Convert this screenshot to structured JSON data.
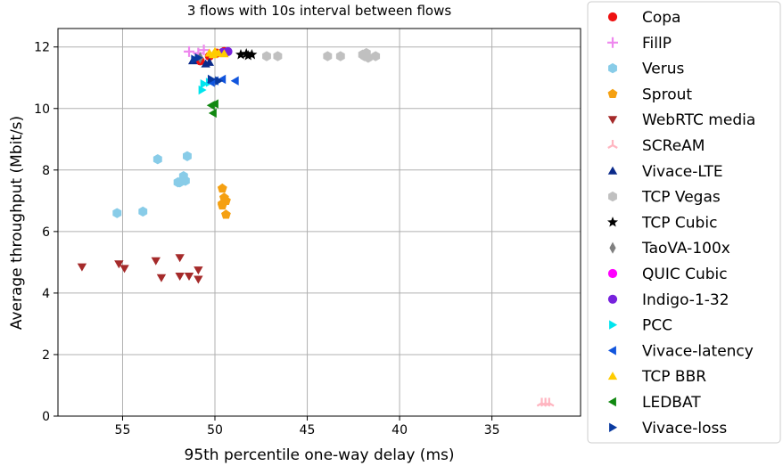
{
  "chart_data": {
    "type": "scatter",
    "title": "3 flows with 10s interval between flows",
    "xlabel": "95th percentile one-way delay (ms)",
    "ylabel": "Average throughput (Mbit/s)",
    "x_inverted": true,
    "xlim": [
      58.5,
      30.2
    ],
    "ylim": [
      0,
      12.6
    ],
    "xticks": [
      55,
      50,
      45,
      40,
      35
    ],
    "yticks": [
      0,
      2,
      4,
      6,
      8,
      10,
      12
    ],
    "grid": true,
    "legend_position": "right (outside plot)",
    "series": [
      {
        "name": "Copa",
        "color": "#ee1111",
        "marker": "circle",
        "points": [
          [
            50.8,
            11.55
          ],
          [
            50.3,
            11.7
          ],
          [
            49.9,
            11.8
          ],
          [
            49.5,
            11.85
          ]
        ]
      },
      {
        "name": "FillP",
        "color": "#ee88ee",
        "marker": "plus",
        "points": [
          [
            51.4,
            11.85
          ],
          [
            50.9,
            11.8
          ],
          [
            50.6,
            11.9
          ]
        ]
      },
      {
        "name": "Verus",
        "color": "#88cce8",
        "marker": "hexagon",
        "points": [
          [
            55.3,
            6.6
          ],
          [
            53.9,
            6.65
          ],
          [
            53.1,
            8.35
          ],
          [
            51.5,
            8.45
          ],
          [
            51.9,
            7.6
          ],
          [
            51.6,
            7.65
          ],
          [
            51.7,
            7.8
          ],
          [
            52.0,
            7.6
          ]
        ]
      },
      {
        "name": "Sprout",
        "color": "#f5a011",
        "marker": "pentagon",
        "points": [
          [
            49.6,
            7.4
          ],
          [
            49.5,
            7.1
          ],
          [
            49.6,
            6.9
          ],
          [
            49.4,
            7.0
          ],
          [
            49.6,
            6.85
          ],
          [
            49.4,
            6.55
          ]
        ]
      },
      {
        "name": "WebRTC media",
        "color": "#a52a2a",
        "marker": "triangle-down",
        "points": [
          [
            57.2,
            4.85
          ],
          [
            55.2,
            4.95
          ],
          [
            54.9,
            4.8
          ],
          [
            53.2,
            5.05
          ],
          [
            52.9,
            4.5
          ],
          [
            51.9,
            4.55
          ],
          [
            51.9,
            5.15
          ],
          [
            51.4,
            4.55
          ],
          [
            50.9,
            4.45
          ],
          [
            50.9,
            4.75
          ]
        ]
      },
      {
        "name": "SCReAM",
        "color": "#ffb6c1",
        "marker": "tri-down",
        "points": [
          [
            32.3,
            0.42
          ],
          [
            32.1,
            0.42
          ],
          [
            31.9,
            0.42
          ]
        ]
      },
      {
        "name": "Vivace-LTE",
        "color": "#0a2a8a",
        "marker": "triangle-up",
        "points": [
          [
            51.2,
            11.55
          ],
          [
            50.5,
            11.45
          ],
          [
            50.3,
            11.5
          ]
        ]
      },
      {
        "name": "TCP Vegas",
        "color": "#c0c0c0",
        "marker": "hexagon",
        "points": [
          [
            47.2,
            11.7
          ],
          [
            46.6,
            11.7
          ],
          [
            43.9,
            11.7
          ],
          [
            43.2,
            11.7
          ],
          [
            42.0,
            11.75
          ],
          [
            41.9,
            11.7
          ],
          [
            41.8,
            11.8
          ],
          [
            41.7,
            11.65
          ],
          [
            41.3,
            11.7
          ]
        ]
      },
      {
        "name": "TCP Cubic",
        "color": "#000000",
        "marker": "star",
        "points": [
          [
            48.6,
            11.75
          ],
          [
            48.3,
            11.78
          ],
          [
            48.0,
            11.75
          ],
          [
            48.2,
            11.72
          ]
        ]
      },
      {
        "name": "TaoVA-100x",
        "color": "#808080",
        "marker": "thin-diamond",
        "points": [
          [
            50.8,
            11.65
          ]
        ]
      },
      {
        "name": "QUIC Cubic",
        "color": "#ff00ff",
        "marker": "circle",
        "points": []
      },
      {
        "name": "Indigo-1-32",
        "color": "#7722dd",
        "marker": "circle",
        "points": [
          [
            49.3,
            11.85
          ],
          [
            49.6,
            11.82
          ]
        ]
      },
      {
        "name": "PCC",
        "color": "#00e5ee",
        "marker": "triangle-right",
        "points": [
          [
            50.6,
            10.8
          ],
          [
            50.3,
            10.85
          ],
          [
            50.7,
            10.6
          ]
        ]
      },
      {
        "name": "Vivace-latency",
        "color": "#1155dd",
        "marker": "triangle-left",
        "points": [
          [
            50.0,
            10.9
          ],
          [
            49.6,
            10.95
          ],
          [
            48.9,
            10.9
          ],
          [
            50.2,
            10.85
          ]
        ]
      },
      {
        "name": "TCP BBR",
        "color": "#ffcc00",
        "marker": "triangle-up",
        "points": [
          [
            50.3,
            11.8
          ],
          [
            50.0,
            11.85
          ],
          [
            49.8,
            11.8
          ],
          [
            49.5,
            11.78
          ],
          [
            50.1,
            11.75
          ]
        ]
      },
      {
        "name": "LEDBAT",
        "color": "#118811",
        "marker": "triangle-left",
        "points": [
          [
            50.2,
            10.1
          ],
          [
            50.1,
            9.85
          ],
          [
            50.0,
            10.15
          ]
        ]
      },
      {
        "name": "Vivace-loss",
        "color": "#0a3aa0",
        "marker": "triangle-right",
        "points": [
          [
            51.1,
            11.6
          ],
          [
            50.9,
            11.65
          ],
          [
            50.2,
            10.95
          ],
          [
            49.8,
            10.9
          ]
        ]
      }
    ]
  }
}
